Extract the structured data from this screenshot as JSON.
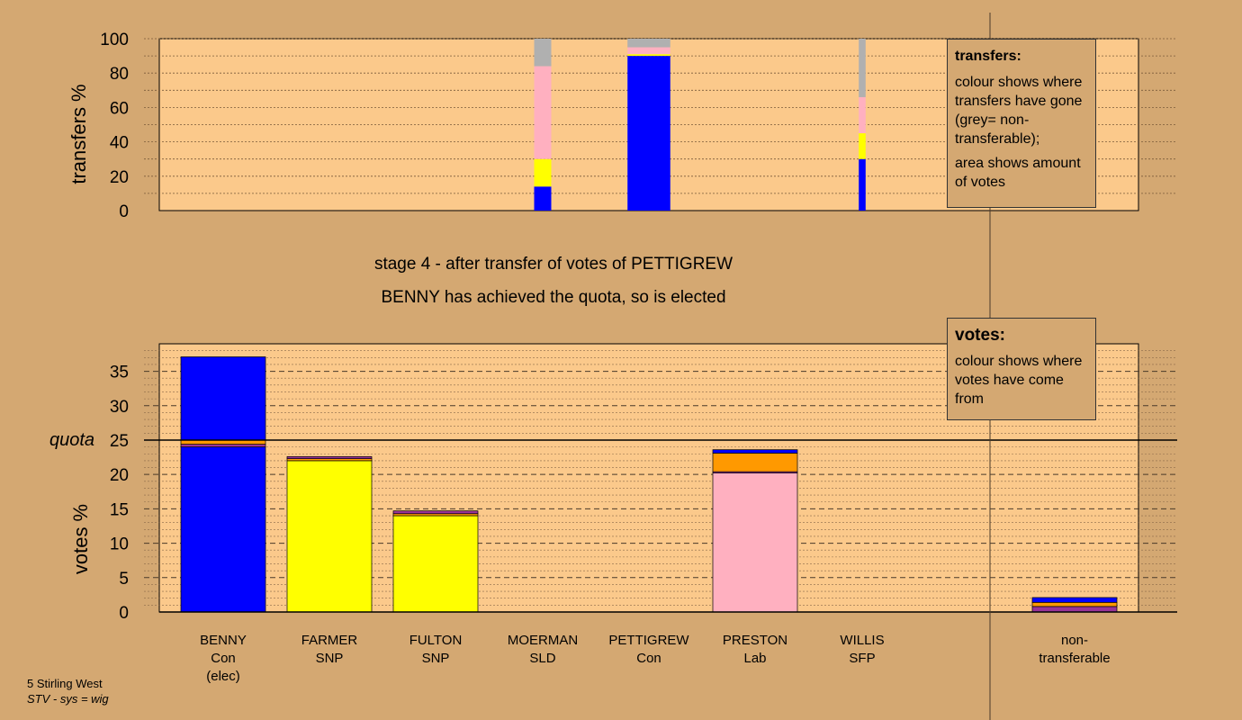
{
  "colors": {
    "background": "#d4a872",
    "plot_bg": "#fbc98b",
    "Con": "#0000ff",
    "SNP": "#ffff00",
    "Lab": "#ffb0c0",
    "SLD": "#ff9900",
    "SFP": "#993399",
    "non_transferable": "#b0b0b0"
  },
  "top_chart": {
    "ylabel": "transfers %",
    "ticks": [
      "0",
      "20",
      "40",
      "60",
      "80",
      "100"
    ]
  },
  "bottom_chart": {
    "ylabel": "votes %",
    "ticks": [
      "0",
      "5",
      "10",
      "15",
      "20",
      "25",
      "30",
      "35"
    ],
    "quota_label": "quota"
  },
  "stage": {
    "line1": "stage 4 - after transfer of votes of PETTIGREW",
    "line2": "BENNY has achieved the quota, so is elected"
  },
  "transfers_legend": {
    "title": "transfers:",
    "p1": "colour shows where transfers have gone (grey= non-transferable);",
    "p2": "area shows amount of votes"
  },
  "votes_legend": {
    "title": "votes:",
    "p1": "colour shows where votes have come from"
  },
  "candidates": [
    {
      "name": "BENNY",
      "party": "Con",
      "note": "(elec)"
    },
    {
      "name": "FARMER",
      "party": "SNP",
      "note": ""
    },
    {
      "name": "FULTON",
      "party": "SNP",
      "note": ""
    },
    {
      "name": "MOERMAN",
      "party": "SLD",
      "note": ""
    },
    {
      "name": "PETTIGREW",
      "party": "Con",
      "note": ""
    },
    {
      "name": "PRESTON",
      "party": "Lab",
      "note": ""
    },
    {
      "name": "WILLIS",
      "party": "SFP",
      "note": ""
    },
    {
      "name": "non-",
      "party": "transferable",
      "note": ""
    }
  ],
  "footer": {
    "line1": "5 Stirling West",
    "line2": "STV - sys = wig"
  },
  "chart_data": [
    {
      "type": "bar",
      "ylabel": "transfers %",
      "ylim": [
        0,
        100
      ],
      "bars": [
        {
          "candidate": "MOERMAN",
          "width_share": 0.2,
          "segments": [
            {
              "to": "Con",
              "value": 14
            },
            {
              "to": "SNP",
              "value": 16
            },
            {
              "to": "Lab",
              "value": 54
            },
            {
              "to": "non_transferable",
              "value": 16
            }
          ]
        },
        {
          "candidate": "PETTIGREW",
          "width_share": 0.5,
          "segments": [
            {
              "to": "Con",
              "value": 90
            },
            {
              "to": "SNP",
              "value": 1
            },
            {
              "to": "Lab",
              "value": 4
            },
            {
              "to": "non_transferable",
              "value": 5
            }
          ]
        },
        {
          "candidate": "WILLIS",
          "width_share": 0.08,
          "segments": [
            {
              "to": "Con",
              "value": 30
            },
            {
              "to": "SNP",
              "value": 15
            },
            {
              "to": "Lab",
              "value": 21
            },
            {
              "to": "non_transferable",
              "value": 34
            }
          ]
        }
      ]
    },
    {
      "type": "bar",
      "ylabel": "votes %",
      "ylim": [
        0,
        39
      ],
      "quota": 25,
      "categories": [
        "BENNY",
        "FARMER",
        "FULTON",
        "MOERMAN",
        "PETTIGREW",
        "PRESTON",
        "WILLIS",
        "non-transferable"
      ],
      "stacks": [
        [
          {
            "from": "Con",
            "value": 24.0
          },
          {
            "from": "SFP",
            "value": 0.4
          },
          {
            "from": "SLD",
            "value": 0.6
          },
          {
            "from": "Con",
            "value": 12.1
          }
        ],
        [
          {
            "from": "SNP",
            "value": 22.0
          },
          {
            "from": "SLD",
            "value": 0.3
          },
          {
            "from": "SFP",
            "value": 0.3
          }
        ],
        [
          {
            "from": "SNP",
            "value": 14.0
          },
          {
            "from": "SLD",
            "value": 0.3
          },
          {
            "from": "SFP",
            "value": 0.4
          }
        ],
        [],
        [],
        [
          {
            "from": "Lab",
            "value": 20.2
          },
          {
            "from": "SFP",
            "value": 0.2
          },
          {
            "from": "SLD",
            "value": 2.7
          },
          {
            "from": "Con",
            "value": 0.5
          }
        ],
        [],
        [
          {
            "from": "SFP",
            "value": 0.8
          },
          {
            "from": "SLD",
            "value": 0.6
          },
          {
            "from": "Con",
            "value": 0.7
          }
        ]
      ]
    }
  ]
}
